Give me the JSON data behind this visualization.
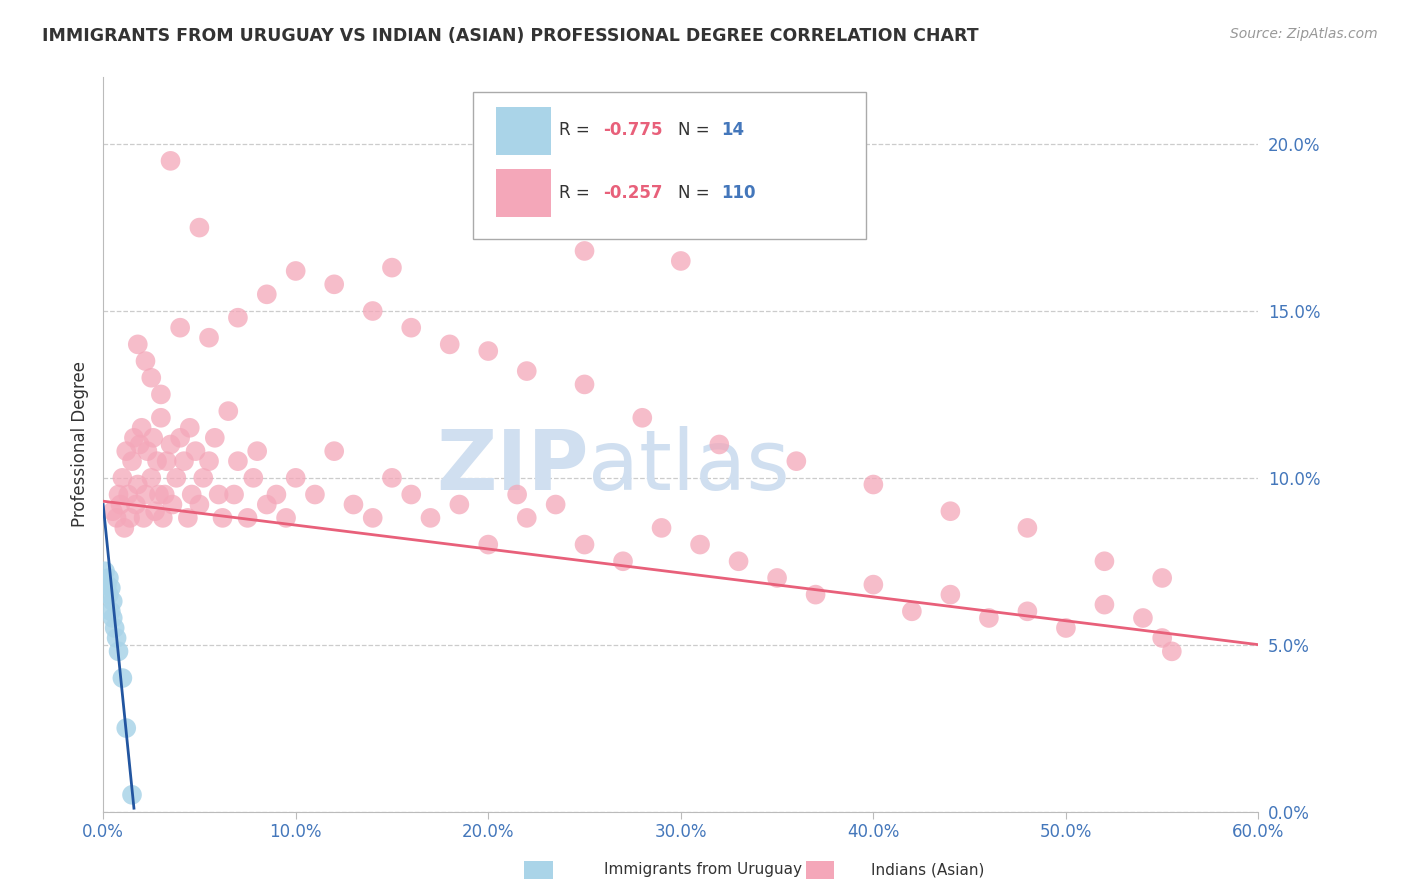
{
  "title": "IMMIGRANTS FROM URUGUAY VS INDIAN (ASIAN) PROFESSIONAL DEGREE CORRELATION CHART",
  "source": "Source: ZipAtlas.com",
  "ylabel": "Professional Degree",
  "xlim": [
    0.0,
    0.6
  ],
  "ylim": [
    0.0,
    0.22
  ],
  "xticks": [
    0.0,
    0.1,
    0.2,
    0.3,
    0.4,
    0.5,
    0.6
  ],
  "yticks": [
    0.0,
    0.05,
    0.1,
    0.15,
    0.2
  ],
  "color_uruguay": "#aad4e8",
  "color_indian": "#f4a7b9",
  "color_line_uruguay": "#2255a0",
  "color_line_indian": "#e8607a",
  "watermark_color": "#d0dff0",
  "background_color": "#ffffff",
  "grid_color": "#cccccc",
  "uruguay_x": [
    0.001,
    0.002,
    0.003,
    0.003,
    0.004,
    0.004,
    0.005,
    0.005,
    0.006,
    0.007,
    0.008,
    0.01,
    0.012,
    0.015
  ],
  "uruguay_y": [
    0.072,
    0.068,
    0.065,
    0.07,
    0.06,
    0.067,
    0.058,
    0.063,
    0.055,
    0.052,
    0.048,
    0.04,
    0.025,
    0.005
  ],
  "indian_x": [
    0.005,
    0.007,
    0.008,
    0.009,
    0.01,
    0.011,
    0.012,
    0.013,
    0.014,
    0.015,
    0.016,
    0.017,
    0.018,
    0.019,
    0.02,
    0.021,
    0.022,
    0.023,
    0.025,
    0.026,
    0.027,
    0.028,
    0.029,
    0.03,
    0.031,
    0.032,
    0.033,
    0.035,
    0.036,
    0.038,
    0.04,
    0.042,
    0.044,
    0.045,
    0.046,
    0.048,
    0.05,
    0.052,
    0.055,
    0.058,
    0.06,
    0.062,
    0.065,
    0.068,
    0.07,
    0.075,
    0.078,
    0.08,
    0.085,
    0.09,
    0.095,
    0.1,
    0.11,
    0.12,
    0.13,
    0.14,
    0.15,
    0.16,
    0.17,
    0.185,
    0.2,
    0.215,
    0.22,
    0.235,
    0.25,
    0.27,
    0.29,
    0.31,
    0.33,
    0.35,
    0.37,
    0.4,
    0.42,
    0.44,
    0.46,
    0.48,
    0.5,
    0.52,
    0.54,
    0.55,
    0.555,
    0.025,
    0.03,
    0.018,
    0.022,
    0.04,
    0.055,
    0.07,
    0.085,
    0.1,
    0.12,
    0.14,
    0.16,
    0.18,
    0.2,
    0.22,
    0.25,
    0.28,
    0.32,
    0.36,
    0.4,
    0.44,
    0.48,
    0.52,
    0.55,
    0.3,
    0.35,
    0.25,
    0.15,
    0.05,
    0.035
  ],
  "indian_y": [
    0.09,
    0.088,
    0.095,
    0.092,
    0.1,
    0.085,
    0.108,
    0.095,
    0.088,
    0.105,
    0.112,
    0.092,
    0.098,
    0.11,
    0.115,
    0.088,
    0.095,
    0.108,
    0.1,
    0.112,
    0.09,
    0.105,
    0.095,
    0.118,
    0.088,
    0.095,
    0.105,
    0.11,
    0.092,
    0.1,
    0.112,
    0.105,
    0.088,
    0.115,
    0.095,
    0.108,
    0.092,
    0.1,
    0.105,
    0.112,
    0.095,
    0.088,
    0.12,
    0.095,
    0.105,
    0.088,
    0.1,
    0.108,
    0.092,
    0.095,
    0.088,
    0.1,
    0.095,
    0.108,
    0.092,
    0.088,
    0.1,
    0.095,
    0.088,
    0.092,
    0.08,
    0.095,
    0.088,
    0.092,
    0.08,
    0.075,
    0.085,
    0.08,
    0.075,
    0.07,
    0.065,
    0.068,
    0.06,
    0.065,
    0.058,
    0.06,
    0.055,
    0.062,
    0.058,
    0.052,
    0.048,
    0.13,
    0.125,
    0.14,
    0.135,
    0.145,
    0.142,
    0.148,
    0.155,
    0.162,
    0.158,
    0.15,
    0.145,
    0.14,
    0.138,
    0.132,
    0.128,
    0.118,
    0.11,
    0.105,
    0.098,
    0.09,
    0.085,
    0.075,
    0.07,
    0.165,
    0.192,
    0.168,
    0.163,
    0.175,
    0.195
  ],
  "ind_line_x0": 0.0,
  "ind_line_x1": 0.6,
  "ind_line_y0": 0.093,
  "ind_line_y1": 0.05,
  "uru_line_x0": 0.0,
  "uru_line_x1": 0.016,
  "uru_line_y0": 0.092,
  "uru_line_y1": 0.001
}
